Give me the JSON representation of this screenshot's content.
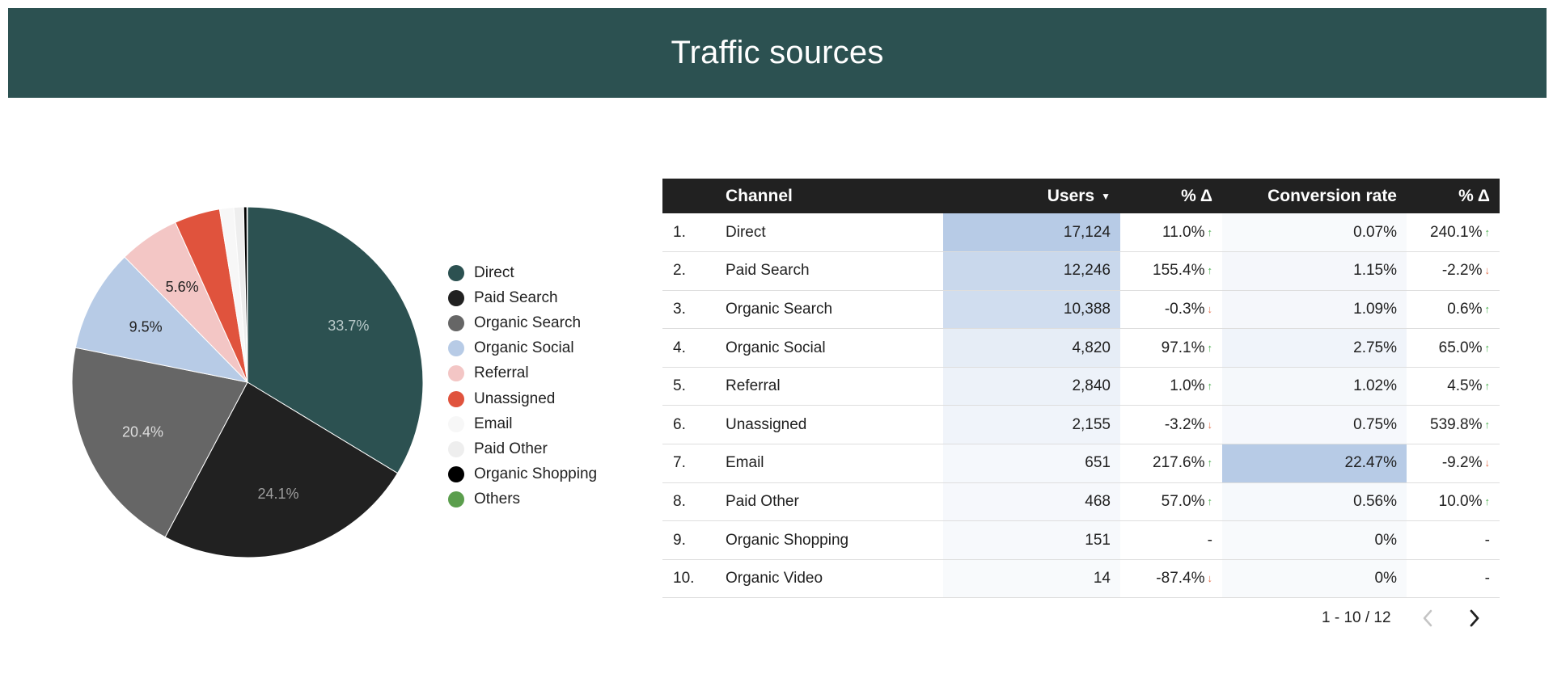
{
  "header": {
    "title": "Traffic sources"
  },
  "chart_data": {
    "type": "pie",
    "title": "",
    "slices": [
      {
        "name": "Direct",
        "value": 33.7,
        "label": "33.7%",
        "color": "#2c5151",
        "label_color": "#b9c9c9"
      },
      {
        "name": "Paid Search",
        "value": 24.1,
        "label": "24.1%",
        "color": "#212121",
        "label_color": "#9e9e9e"
      },
      {
        "name": "Organic Search",
        "value": 20.4,
        "label": "20.4%",
        "color": "#666666",
        "label_color": "#dddddd"
      },
      {
        "name": "Organic Social",
        "value": 9.5,
        "label": "9.5%",
        "color": "#b7cbe6",
        "label_color": "#212121"
      },
      {
        "name": "Referral",
        "value": 5.6,
        "label": "5.6%",
        "color": "#f3c6c5",
        "label_color": "#212121"
      },
      {
        "name": "Unassigned",
        "value": 4.2,
        "label": "",
        "color": "#e0533d",
        "label_color": "#212121"
      },
      {
        "name": "Email",
        "value": 1.3,
        "label": "",
        "color": "#f7f7f7",
        "label_color": "#212121"
      },
      {
        "name": "Paid Other",
        "value": 0.9,
        "label": "",
        "color": "#eeeeee",
        "label_color": "#212121"
      },
      {
        "name": "Organic Shopping",
        "value": 0.3,
        "label": "",
        "color": "#000000",
        "label_color": "#212121"
      },
      {
        "name": "Others",
        "value": 0.05,
        "label": "",
        "color": "#5b9e4d",
        "label_color": "#212121"
      }
    ],
    "legend_position": "right"
  },
  "table": {
    "headers": {
      "index": "",
      "channel": "Channel",
      "users": "Users",
      "users_delta": "% Δ",
      "conversion_rate": "Conversion rate",
      "cr_delta": "% Δ"
    },
    "sort_icon": "triangle-down-icon",
    "rows": [
      {
        "index": "1.",
        "channel": "Direct",
        "users": "17,124",
        "users_delta": "11.0%",
        "users_trend": "up",
        "conversion_rate": "0.07%",
        "cr_delta": "240.1%",
        "cr_trend": "up"
      },
      {
        "index": "2.",
        "channel": "Paid Search",
        "users": "12,246",
        "users_delta": "155.4%",
        "users_trend": "up",
        "conversion_rate": "1.15%",
        "cr_delta": "-2.2%",
        "cr_trend": "down"
      },
      {
        "index": "3.",
        "channel": "Organic Search",
        "users": "10,388",
        "users_delta": "-0.3%",
        "users_trend": "down",
        "conversion_rate": "1.09%",
        "cr_delta": "0.6%",
        "cr_trend": "up"
      },
      {
        "index": "4.",
        "channel": "Organic Social",
        "users": "4,820",
        "users_delta": "97.1%",
        "users_trend": "up",
        "conversion_rate": "2.75%",
        "cr_delta": "65.0%",
        "cr_trend": "up"
      },
      {
        "index": "5.",
        "channel": "Referral",
        "users": "2,840",
        "users_delta": "1.0%",
        "users_trend": "up",
        "conversion_rate": "1.02%",
        "cr_delta": "4.5%",
        "cr_trend": "up"
      },
      {
        "index": "6.",
        "channel": "Unassigned",
        "users": "2,155",
        "users_delta": "-3.2%",
        "users_trend": "down",
        "conversion_rate": "0.75%",
        "cr_delta": "539.8%",
        "cr_trend": "up"
      },
      {
        "index": "7.",
        "channel": "Email",
        "users": "651",
        "users_delta": "217.6%",
        "users_trend": "up",
        "conversion_rate": "22.47%",
        "cr_delta": "-9.2%",
        "cr_trend": "down"
      },
      {
        "index": "8.",
        "channel": "Paid Other",
        "users": "468",
        "users_delta": "57.0%",
        "users_trend": "up",
        "conversion_rate": "0.56%",
        "cr_delta": "10.0%",
        "cr_trend": "up"
      },
      {
        "index": "9.",
        "channel": "Organic Shopping",
        "users": "151",
        "users_delta": "-",
        "users_trend": "none",
        "conversion_rate": "0%",
        "cr_delta": "-",
        "cr_trend": "none"
      },
      {
        "index": "10.",
        "channel": "Organic Video",
        "users": "14",
        "users_delta": "-87.4%",
        "users_trend": "down",
        "conversion_rate": "0%",
        "cr_delta": "-",
        "cr_trend": "none"
      }
    ],
    "heat_color": "#b7cbe6"
  },
  "pagination": {
    "label": "1 - 10 / 12",
    "prev_icon": "chevron-left-icon",
    "next_icon": "chevron-right-icon"
  }
}
